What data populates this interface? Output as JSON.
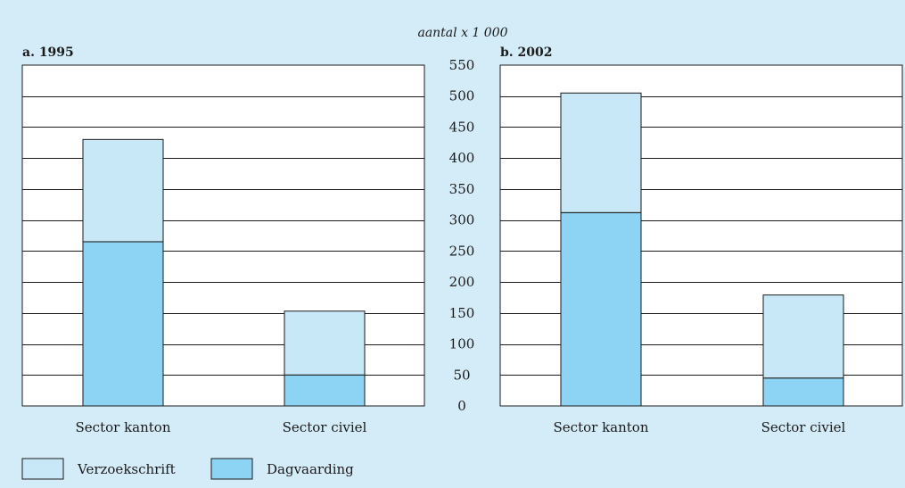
{
  "chart_data": {
    "type": "bar",
    "stacked": true,
    "unit_label": "aantal x 1 000",
    "ylim": [
      0,
      550
    ],
    "y_ticks": [
      0,
      50,
      100,
      150,
      200,
      250,
      300,
      350,
      400,
      450,
      500,
      550
    ],
    "categories": [
      "Sector kanton",
      "Sector civiel"
    ],
    "colors": {
      "background": "#d4ecf8",
      "plot": "#ffffff",
      "Dagvaarding": "#8dd4f4",
      "Verzoekschrift": "#c8e8f8",
      "stroke": "#1a1a1a"
    },
    "panels": [
      {
        "title": "a.  1995",
        "series": [
          {
            "name": "Dagvaarding",
            "values": [
              265,
              50
            ]
          },
          {
            "name": "Verzoekschrift",
            "values": [
              165,
              103
            ]
          }
        ]
      },
      {
        "title": "b.  2002",
        "series": [
          {
            "name": "Dagvaarding",
            "values": [
              312,
              45
            ]
          },
          {
            "name": "Verzoekschrift",
            "values": [
              193,
              134
            ]
          }
        ]
      }
    ],
    "legend": [
      {
        "name": "Verzoekschrift",
        "color": "#c8e8f8"
      },
      {
        "name": "Dagvaarding",
        "color": "#8dd4f4"
      }
    ],
    "legend_position": "bottom-left",
    "grid": true
  }
}
